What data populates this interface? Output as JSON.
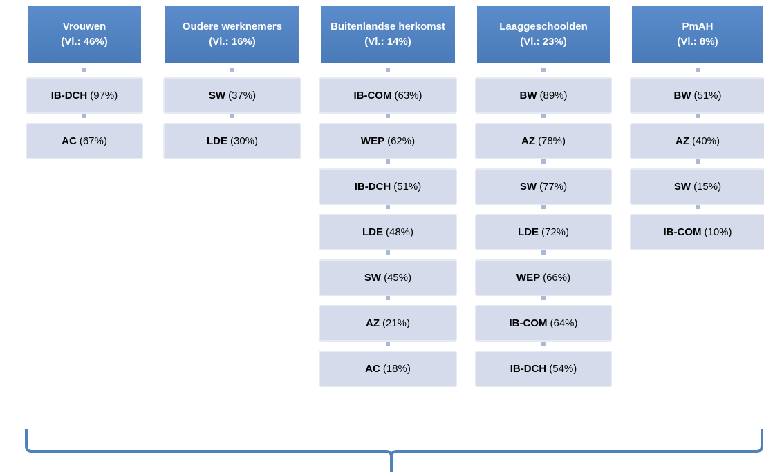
{
  "columns": [
    {
      "title": "Vrouwen",
      "subtitle": "(Vl.: 46%)",
      "items": [
        {
          "code": "IB-DCH",
          "share": "(97%)"
        },
        {
          "code": "AC",
          "share": "(67%)"
        }
      ]
    },
    {
      "title": "Oudere werknemers",
      "subtitle": "(Vl.: 16%)",
      "items": [
        {
          "code": "SW",
          "share": "(37%)"
        },
        {
          "code": "LDE",
          "share": "(30%)"
        }
      ]
    },
    {
      "title": "Buitenlandse herkomst",
      "subtitle": "(Vl.: 14%)",
      "items": [
        {
          "code": "IB-COM",
          "share": "(63%)"
        },
        {
          "code": "WEP",
          "share": "(62%)"
        },
        {
          "code": "IB-DCH",
          "share": "(51%)"
        },
        {
          "code": "LDE",
          "share": "(48%)"
        },
        {
          "code": "SW",
          "share": "(45%)"
        },
        {
          "code": "AZ",
          "share": "(21%)"
        },
        {
          "code": "AC",
          "share": "(18%)"
        }
      ]
    },
    {
      "title": "Laaggeschoolden",
      "subtitle": "(Vl.: 23%)",
      "items": [
        {
          "code": "BW",
          "share": "(89%)"
        },
        {
          "code": "AZ",
          "share": "(78%)"
        },
        {
          "code": "SW",
          "share": "(77%)"
        },
        {
          "code": "LDE",
          "share": "(72%)"
        },
        {
          "code": "WEP",
          "share": "(66%)"
        },
        {
          "code": "IB-COM",
          "share": "(64%)"
        },
        {
          "code": "IB-DCH",
          "share": "(54%)"
        }
      ]
    },
    {
      "title": "PmAH",
      "subtitle": "(Vl.: 8%)",
      "items": [
        {
          "code": "BW",
          "share": "(51%)"
        },
        {
          "code": "AZ",
          "share": "(40%)"
        },
        {
          "code": "SW",
          "share": "(15%)"
        },
        {
          "code": "IB-COM",
          "share": "(10%)"
        }
      ]
    }
  ]
}
